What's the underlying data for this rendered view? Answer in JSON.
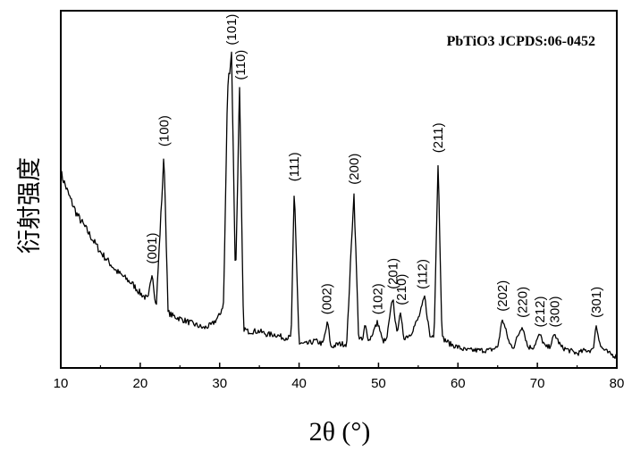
{
  "chart_data": {
    "type": "line",
    "title": "",
    "legend_text": "PbTiO3 JCPDS:06-0452",
    "xlabel": "2θ (°)",
    "ylabel": "衍射强度",
    "xlim": [
      10,
      80
    ],
    "ylim": [
      0,
      100
    ],
    "y_ticks_labeled": false,
    "x_ticks": [
      "10",
      "20",
      "30",
      "40",
      "50",
      "60",
      "70",
      "80"
    ],
    "grid": false,
    "legend_position": "top-right",
    "series": [
      {
        "x": [
          10,
          11,
          12,
          13,
          14,
          15,
          16,
          17,
          18,
          19,
          20,
          21,
          21.5,
          22,
          23,
          23.5,
          24,
          25,
          26,
          27,
          28,
          29,
          30,
          30.5,
          31,
          31.5,
          32,
          32.5,
          33,
          33.5,
          34,
          35,
          36,
          37,
          38,
          39,
          39.4,
          40,
          41,
          42,
          43,
          43.6,
          44,
          45,
          46,
          46.9,
          47.5,
          48,
          48.3,
          48.8,
          49,
          49.9,
          50.5,
          51,
          51.8,
          52.3,
          52.7,
          53.2,
          54,
          55,
          55.4,
          55.8,
          56.5,
          57,
          57.5,
          58,
          59,
          60,
          61,
          62,
          63,
          64,
          65,
          65.6,
          66.5,
          67,
          68.1,
          68.8,
          69.5,
          70.3,
          71,
          71.5,
          72.2,
          73,
          74,
          75,
          76,
          77,
          77.4,
          78,
          79,
          80
        ],
        "y": [
          61,
          54,
          48,
          44,
          40,
          36,
          33,
          30,
          28,
          26,
          23,
          21,
          30,
          18,
          67,
          17,
          16,
          15,
          14,
          13,
          12,
          13,
          16,
          20,
          88,
          99,
          26,
          88,
          12,
          11,
          11,
          11,
          10,
          10,
          9,
          9,
          56,
          7,
          7,
          8,
          7,
          14,
          6,
          7,
          7,
          55,
          9,
          8,
          13,
          8,
          9,
          14,
          8,
          8,
          22,
          10,
          17,
          9,
          10,
          15,
          18,
          22,
          9,
          10,
          65,
          9,
          7,
          6,
          5,
          5,
          5,
          5,
          6,
          15,
          7,
          6,
          13,
          6,
          6,
          10,
          6,
          6,
          10,
          6,
          5,
          4,
          5,
          5,
          13,
          6,
          4,
          3
        ]
      }
    ],
    "peak_labels": [
      {
        "x": 21.5,
        "text": "(001)"
      },
      {
        "x": 23.0,
        "text": "(100)"
      },
      {
        "x": 31.5,
        "text": "(101)"
      },
      {
        "x": 32.6,
        "text": "(110)"
      },
      {
        "x": 39.4,
        "text": "(111)"
      },
      {
        "x": 43.5,
        "text": "(002)"
      },
      {
        "x": 46.9,
        "text": "(200)"
      },
      {
        "x": 49.9,
        "text": "(102)"
      },
      {
        "x": 51.8,
        "text": "(201)"
      },
      {
        "x": 52.9,
        "text": "(210)"
      },
      {
        "x": 55.5,
        "text": "(112)"
      },
      {
        "x": 57.5,
        "text": "(211)"
      },
      {
        "x": 65.6,
        "text": "(202)"
      },
      {
        "x": 68.1,
        "text": "(220)"
      },
      {
        "x": 70.3,
        "text": "(212)"
      },
      {
        "x": 72.2,
        "text": "(300)"
      },
      {
        "x": 77.4,
        "text": "(301)"
      }
    ]
  }
}
